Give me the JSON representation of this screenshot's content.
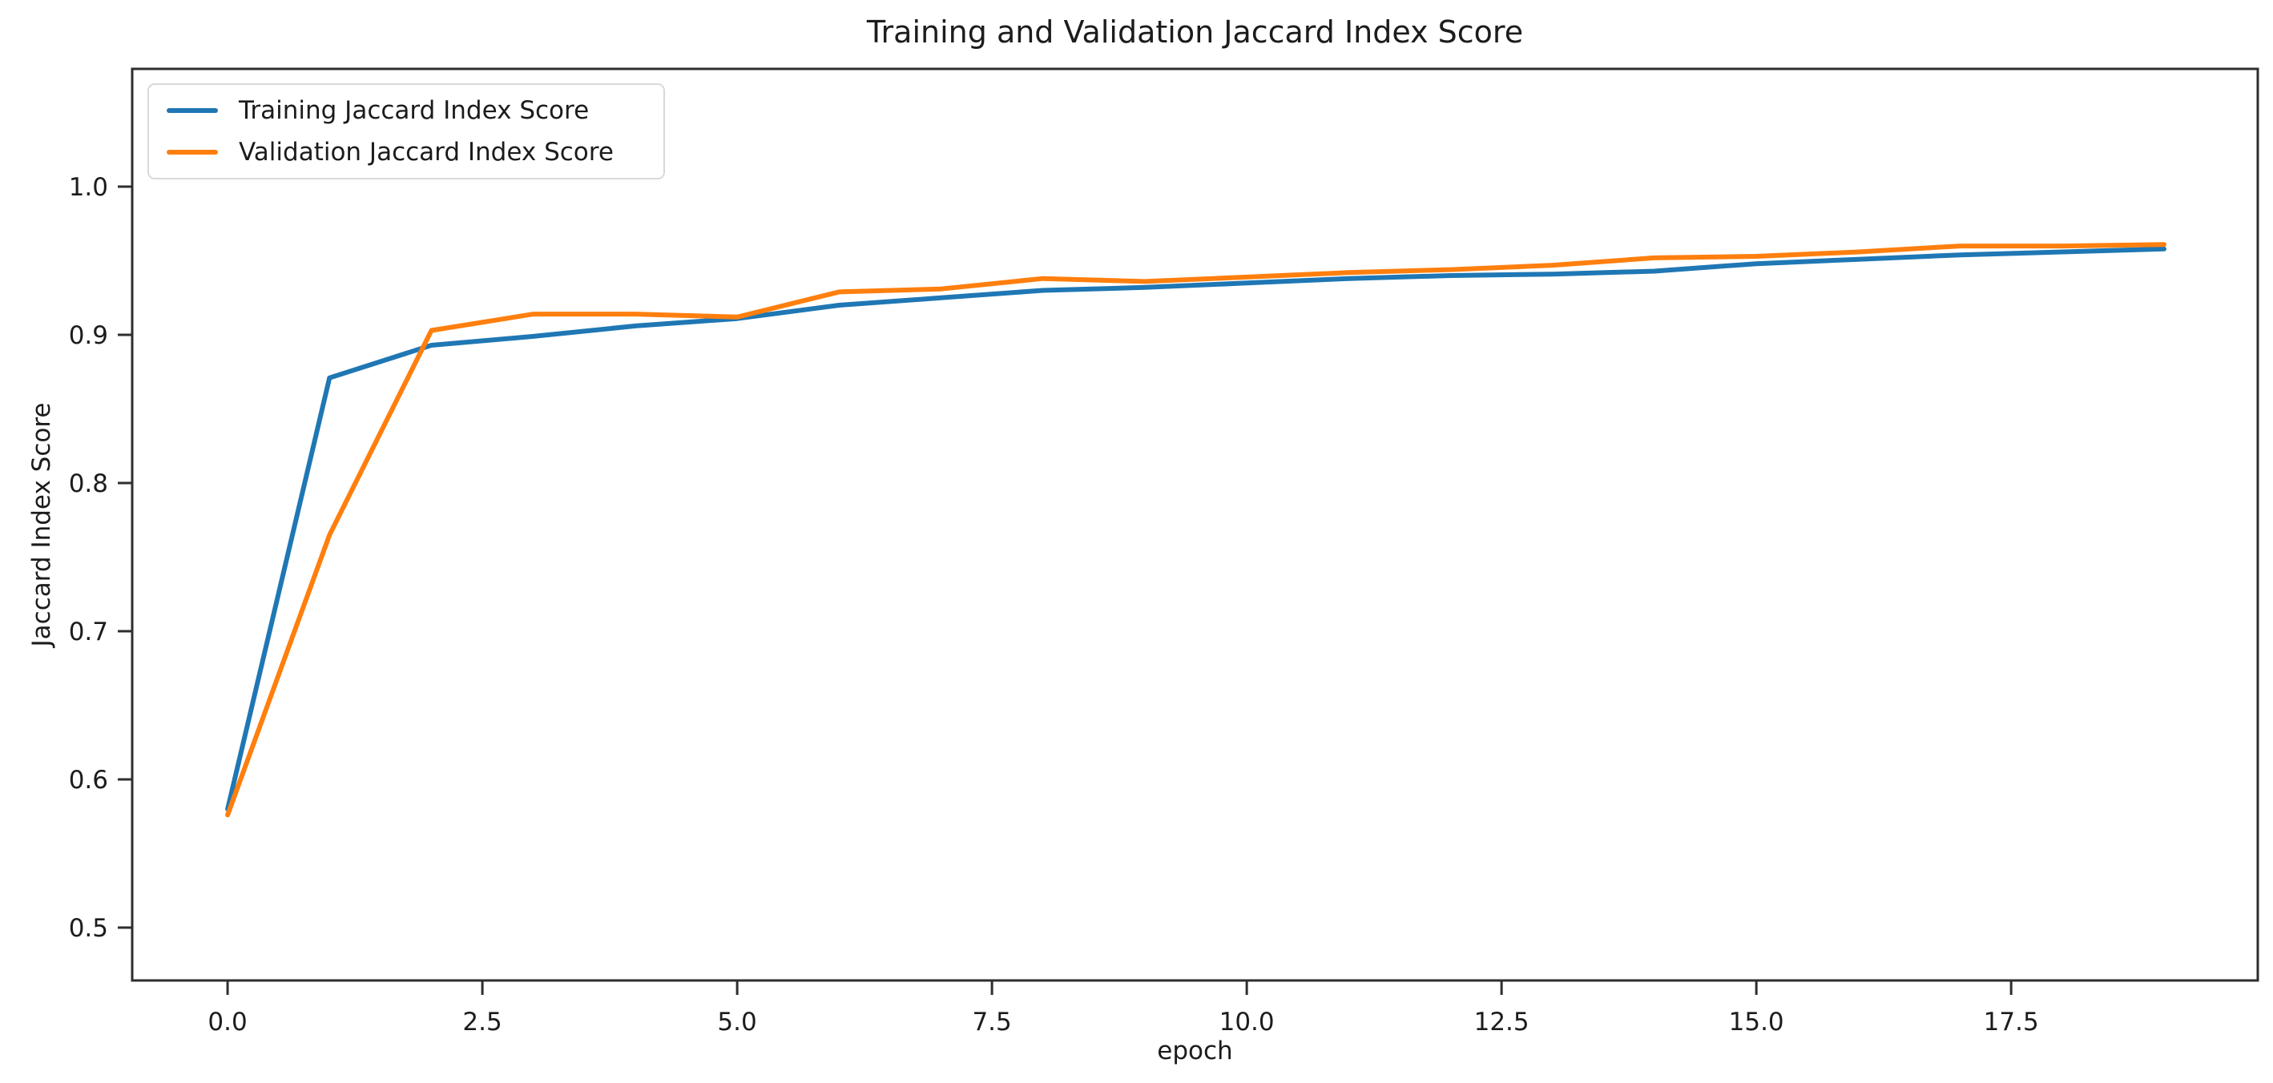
{
  "page": {
    "background": "#ffffff",
    "text_color": "#1c1c1c",
    "spine_color": "#2e2e2e"
  },
  "chart_data": {
    "type": "line",
    "title": "Training and Validation Jaccard Index Score",
    "xlabel": "epoch",
    "ylabel": "Jaccard Index Score",
    "grid": false,
    "legend_position": "upper left",
    "xlim": [
      -0.936,
      19.92
    ],
    "ylim": [
      0.4643,
      1.0795
    ],
    "x_ticks": [
      0,
      2.5,
      5,
      7.5,
      10,
      12.5,
      15,
      17.5
    ],
    "x_tick_labels": [
      "0.0",
      "2.5",
      "5.0",
      "7.5",
      "10.0",
      "12.5",
      "15.0",
      "17.5"
    ],
    "y_ticks": [
      0.5,
      0.6,
      0.7,
      0.8,
      0.9,
      1.0
    ],
    "y_tick_labels": [
      "0.5",
      "0.6",
      "0.7",
      "0.8",
      "0.9",
      "1.0"
    ],
    "x": [
      0,
      1,
      2,
      3,
      4,
      5,
      6,
      7,
      8,
      9,
      10,
      11,
      12,
      13,
      14,
      15,
      16,
      17,
      18,
      19
    ],
    "series": [
      {
        "name": "Training Jaccard Index Score",
        "color": "#1f77b4",
        "values": [
          0.58,
          0.871,
          0.893,
          0.899,
          0.906,
          0.911,
          0.92,
          0.925,
          0.93,
          0.932,
          0.935,
          0.938,
          0.94,
          0.941,
          0.943,
          0.948,
          0.951,
          0.954,
          0.956,
          0.958
        ]
      },
      {
        "name": "Validation Jaccard Index Score",
        "color": "#ff7f0e",
        "values": [
          0.576,
          0.765,
          0.903,
          0.914,
          0.914,
          0.912,
          0.929,
          0.931,
          0.938,
          0.936,
          0.939,
          0.942,
          0.944,
          0.947,
          0.952,
          0.953,
          0.956,
          0.96,
          0.96,
          0.961
        ]
      }
    ]
  }
}
